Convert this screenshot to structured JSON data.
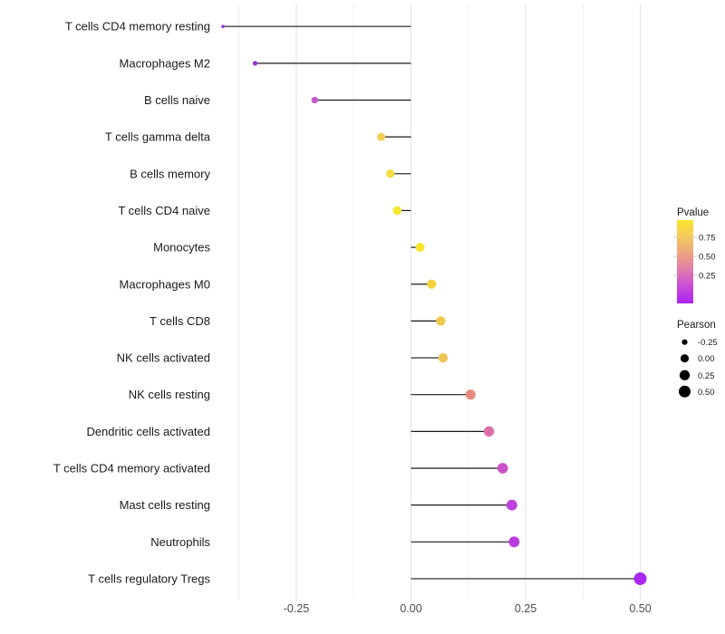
{
  "chart_data": {
    "type": "scatter",
    "subtype": "lollipop",
    "orientation": "horizontal",
    "title": "",
    "xlabel": "",
    "ylabel": "",
    "xlim": [
      -0.46,
      0.55
    ],
    "grid": "vertical-only",
    "x_ticks": [
      "-0.25",
      "0.00",
      "0.25",
      "0.50"
    ],
    "x_tick_values": [
      -0.25,
      0.0,
      0.25,
      0.5
    ],
    "x_minor_tick_values": [
      -0.375,
      -0.125,
      0.125,
      0.375
    ],
    "categories": [
      "T cells CD4 memory resting",
      "Macrophages M2",
      "B cells naive",
      "T cells gamma delta",
      "B cells memory",
      "T cells CD4 naive",
      "Monocytes",
      "Macrophages M0",
      "T cells CD8",
      "NK cells activated",
      "NK cells resting",
      "Dendritic cells activated",
      "T cells CD4 memory activated",
      "Mast cells resting",
      "Neutrophils",
      "T cells regulatory  Tregs"
    ],
    "points": [
      {
        "label": "T cells CD4 memory resting",
        "pearson": -0.41,
        "pvalue": 0.06,
        "color": "#962FE3"
      },
      {
        "label": "Macrophages M2",
        "pearson": -0.34,
        "pvalue": 0.09,
        "color": "#9632DC"
      },
      {
        "label": "B cells naive",
        "pearson": -0.21,
        "pvalue": 0.3,
        "color": "#C455CC"
      },
      {
        "label": "T cells gamma delta",
        "pearson": -0.065,
        "pvalue": 0.7,
        "color": "#F2CF56"
      },
      {
        "label": "B cells memory",
        "pearson": -0.045,
        "pvalue": 0.78,
        "color": "#F5DC3D"
      },
      {
        "label": "T cells CD4 naive",
        "pearson": -0.03,
        "pvalue": 0.84,
        "color": "#F8E42E"
      },
      {
        "label": "Monocytes",
        "pearson": 0.02,
        "pvalue": 0.87,
        "color": "#F8E62A"
      },
      {
        "label": "Macrophages M0",
        "pearson": 0.045,
        "pvalue": 0.74,
        "color": "#F2D23F"
      },
      {
        "label": "T cells CD8",
        "pearson": 0.065,
        "pvalue": 0.66,
        "color": "#EFC94F"
      },
      {
        "label": "NK cells activated",
        "pearson": 0.07,
        "pvalue": 0.63,
        "color": "#EFC457"
      },
      {
        "label": "NK cells resting",
        "pearson": 0.13,
        "pvalue": 0.46,
        "color": "#E98A7E"
      },
      {
        "label": "Dendritic cells activated",
        "pearson": 0.17,
        "pvalue": 0.36,
        "color": "#DE6EA8"
      },
      {
        "label": "T cells CD4 memory activated",
        "pearson": 0.2,
        "pvalue": 0.27,
        "color": "#CC51C8"
      },
      {
        "label": "Mast cells resting",
        "pearson": 0.22,
        "pvalue": 0.17,
        "color": "#BC41DB"
      },
      {
        "label": "Neutrophils",
        "pearson": 0.225,
        "pvalue": 0.16,
        "color": "#BC3BDC"
      },
      {
        "label": "T cells regulatory  Tregs",
        "pearson": 0.5,
        "pvalue": 0.03,
        "color": "#AA28F0"
      }
    ],
    "legend": {
      "pvalue": {
        "title": "Pvalue",
        "tick_labels": [
          "0.75",
          "0.50",
          "0.25"
        ],
        "tick_values": [
          0.75,
          0.5,
          0.25
        ],
        "gradient_stops": [
          {
            "offset": 0.0,
            "color": "#F9E52B"
          },
          {
            "offset": 0.2,
            "color": "#F4C95E"
          },
          {
            "offset": 0.4,
            "color": "#EDA381"
          },
          {
            "offset": 0.6,
            "color": "#E07BAC"
          },
          {
            "offset": 0.8,
            "color": "#C94BD9"
          },
          {
            "offset": 1.0,
            "color": "#AA22F2"
          }
        ]
      },
      "pearson": {
        "title": "Pearson",
        "items": [
          {
            "label": "-0.25",
            "value": -0.25
          },
          {
            "label": "0.00",
            "value": 0.0
          },
          {
            "label": "0.25",
            "value": 0.25
          },
          {
            "label": "0.50",
            "value": 0.5
          }
        ]
      }
    },
    "style_colors": {
      "stem": "#1a1a1a",
      "grid_major": "#e3e3e3",
      "grid_minor": "#efefef",
      "axis_text": "#4d4d4d",
      "category_text": "#1a1a1a",
      "legend_text": "#1a1a1a",
      "legend_dot": "#000000"
    }
  }
}
